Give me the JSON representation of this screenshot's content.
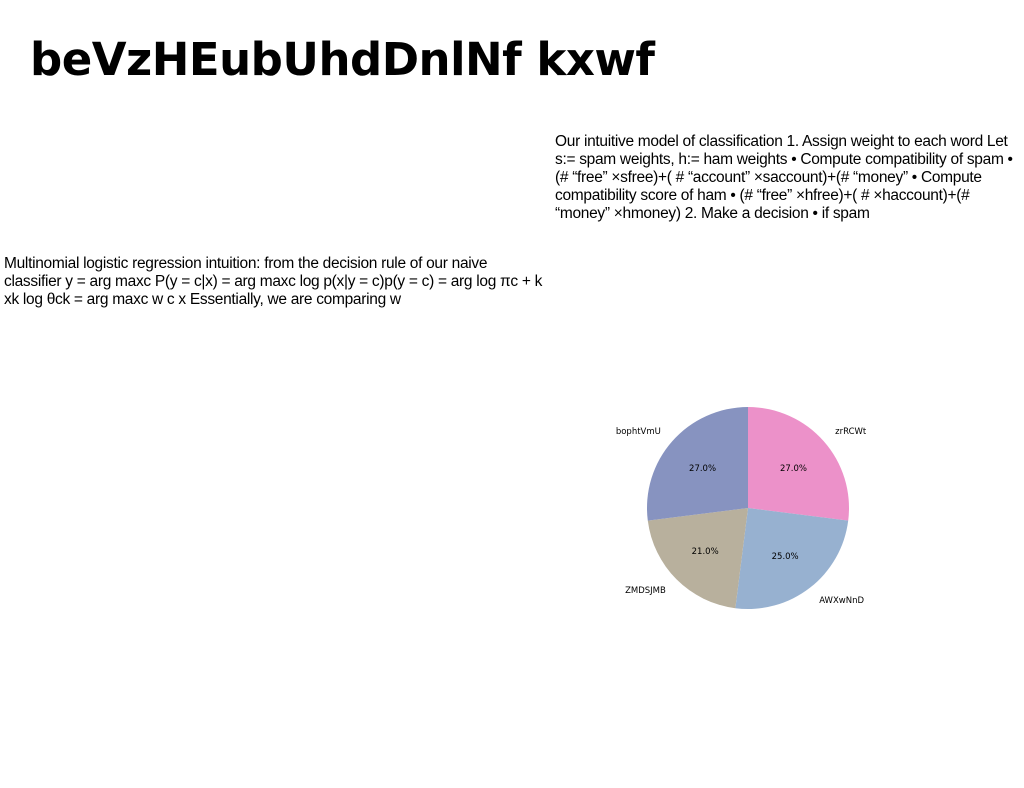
{
  "slide": {
    "title": "beVzHEubUhdDnlNf kxwf",
    "text_right": "Our intuitive model of classification 1. Assign weight to each word Let s:= spam weights, h:= ham weights • Compute compatibility of spam • (# “free” ×sfree)+( # “account” ×saccount)+(# “money” • Compute compatibility score of ham • (# “free” ×hfree)+( # ×haccount)+(# “money” ×hmoney) 2. Make a decision • if spam",
    "text_left": "Multinomial logistic regression intuition: from the decision rule of our naive classifier y  = arg maxc P(y = c|x) = arg maxc log p(x|y = c)p(y = c) = arg log πc +  k xk log θck = arg maxc w  c x Essentially, we are comparing w"
  },
  "chart_data": {
    "type": "pie",
    "slices": [
      {
        "label": "zrRCWt",
        "value": 27.0,
        "pct_label": "27.0%",
        "color": "#ec91c9"
      },
      {
        "label": "AWXwNnD",
        "value": 25.0,
        "pct_label": "25.0%",
        "color": "#97b1d0"
      },
      {
        "label": "ZMDSJMB",
        "value": 21.0,
        "pct_label": "21.0%",
        "color": "#b8b09d"
      },
      {
        "label": "bophtVmU",
        "value": 27.0,
        "pct_label": "27.0%",
        "color": "#8793c0"
      }
    ],
    "start_angle": 90,
    "direction": "clockwise",
    "legend": "none"
  }
}
